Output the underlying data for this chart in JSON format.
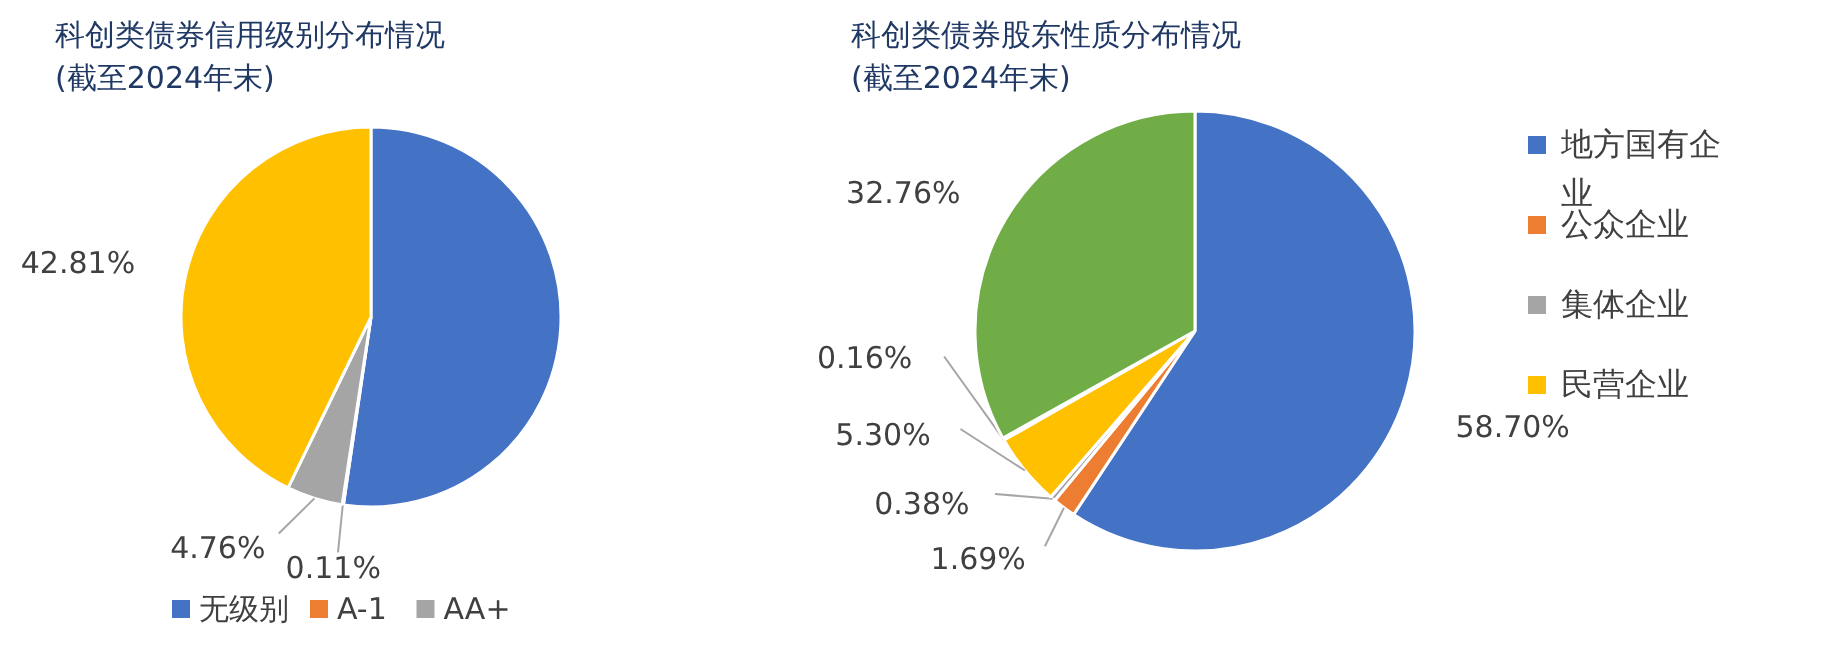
{
  "chart_data": [
    {
      "type": "pie",
      "title": "科创类债券信用级别分布情况",
      "subtitle": "(截至2024年末)",
      "categories": [
        "无级别",
        "A-1",
        "AA+",
        null
      ],
      "values": [
        52.32,
        0.11,
        4.76,
        42.81
      ],
      "colors": [
        "#4472c4",
        "#ed7d31",
        "#a5a5a5",
        "#ffc000"
      ],
      "value_labels": [
        null,
        "0.11%",
        "4.76%",
        "42.81%"
      ],
      "legend": "bottom"
    },
    {
      "type": "pie",
      "title": "科创类债券股东性质分布情况",
      "subtitle": "(截至2024年末)",
      "categories": [
        "地方国有企业",
        "公众企业",
        "集体企业",
        "民营企业",
        null,
        null
      ],
      "values": [
        58.7,
        1.69,
        0.38,
        5.3,
        0.16,
        32.76
      ],
      "colors": [
        "#4472c4",
        "#ed7d31",
        "#a5a5a5",
        "#ffc000",
        "#5b9bd5",
        "#70ad47"
      ],
      "value_labels": [
        "58.70%",
        "1.69%",
        "0.38%",
        "5.30%",
        "0.16%",
        "32.76%"
      ],
      "legend": "right"
    }
  ]
}
